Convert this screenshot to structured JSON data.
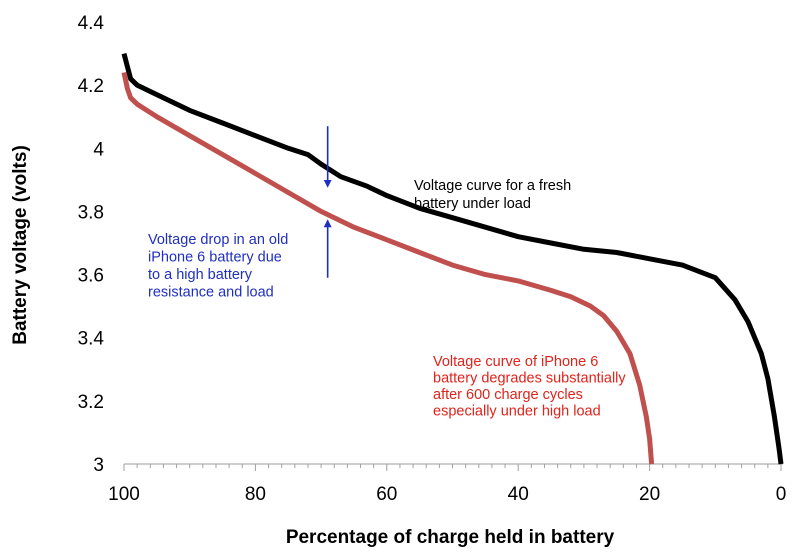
{
  "chart_data": {
    "type": "line",
    "title": "",
    "xlabel": "Percentage of charge held in battery",
    "ylabel": "Battery voltage (volts)",
    "xlim": [
      100,
      0
    ],
    "ylim": [
      3.0,
      4.4
    ],
    "x_reversed": true,
    "grid": false,
    "x_ticks": [
      "100",
      "80",
      "60",
      "40",
      "20",
      "0"
    ],
    "y_ticks": [
      "4.4",
      "4.2",
      "4",
      "3.8",
      "3.6",
      "3.4",
      "3.2",
      "3"
    ],
    "series": [
      {
        "name": "Voltage curve for a fresh battery under load",
        "color": "#000000",
        "points": [
          [
            100,
            4.3
          ],
          [
            99.5,
            4.26
          ],
          [
            99,
            4.22
          ],
          [
            98,
            4.2
          ],
          [
            95,
            4.17
          ],
          [
            90,
            4.12
          ],
          [
            85,
            4.08
          ],
          [
            80,
            4.04
          ],
          [
            75,
            4.0
          ],
          [
            72,
            3.98
          ],
          [
            70,
            3.95
          ],
          [
            67,
            3.91
          ],
          [
            63,
            3.88
          ],
          [
            60,
            3.85
          ],
          [
            55,
            3.81
          ],
          [
            50,
            3.78
          ],
          [
            45,
            3.75
          ],
          [
            40,
            3.72
          ],
          [
            35,
            3.7
          ],
          [
            30,
            3.68
          ],
          [
            25,
            3.67
          ],
          [
            20,
            3.65
          ],
          [
            15,
            3.63
          ],
          [
            10,
            3.59
          ],
          [
            7,
            3.52
          ],
          [
            5,
            3.45
          ],
          [
            3,
            3.35
          ],
          [
            2,
            3.27
          ],
          [
            1,
            3.15
          ],
          [
            0.3,
            3.05
          ],
          [
            0,
            3.0
          ]
        ]
      },
      {
        "name": "Voltage curve of iPhone 6 battery degrades substantially after 600 charge cycles especially under high load",
        "color": "#c0504d",
        "points": [
          [
            100,
            4.24
          ],
          [
            99.5,
            4.19
          ],
          [
            99,
            4.16
          ],
          [
            98,
            4.14
          ],
          [
            95,
            4.1
          ],
          [
            90,
            4.04
          ],
          [
            85,
            3.98
          ],
          [
            80,
            3.92
          ],
          [
            75,
            3.86
          ],
          [
            70,
            3.8
          ],
          [
            65,
            3.75
          ],
          [
            60,
            3.71
          ],
          [
            55,
            3.67
          ],
          [
            50,
            3.63
          ],
          [
            45,
            3.6
          ],
          [
            40,
            3.58
          ],
          [
            35,
            3.55
          ],
          [
            32,
            3.53
          ],
          [
            29,
            3.5
          ],
          [
            27,
            3.47
          ],
          [
            25,
            3.42
          ],
          [
            23,
            3.35
          ],
          [
            21.5,
            3.25
          ],
          [
            20.5,
            3.15
          ],
          [
            20,
            3.08
          ],
          [
            19.7,
            3.0
          ]
        ]
      }
    ],
    "annotations": [
      {
        "id": "fresh",
        "color": "#000000",
        "lines": [
          "Voltage curve for a fresh",
          "battery under load"
        ]
      },
      {
        "id": "drop",
        "color": "#1f2fbf",
        "lines": [
          "Voltage drop in an old",
          "iPhone 6 battery due",
          "to a high battery",
          "resistance and load"
        ]
      },
      {
        "id": "degraded",
        "color": "#e0231b",
        "lines": [
          "Voltage curve of iPhone 6",
          "battery degrades substantially",
          "after 600 charge cycles",
          "especially under high load"
        ]
      }
    ],
    "arrows": {
      "color": "#1f2fbf",
      "x": 69,
      "down_from": 4.07,
      "down_to": 3.88,
      "up_from": 3.59,
      "up_to": 3.77
    }
  }
}
